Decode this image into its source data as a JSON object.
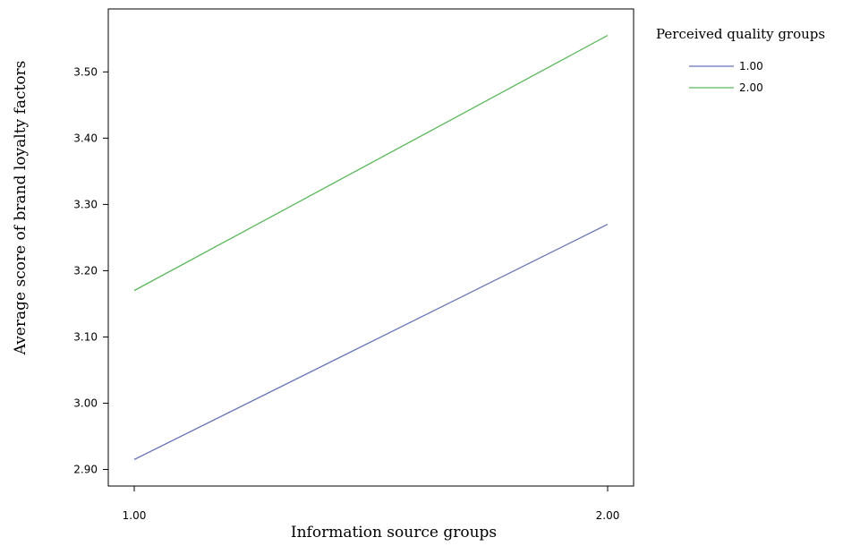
{
  "chart_data": {
    "type": "line",
    "xlabel": "Information source groups",
    "ylabel": "Average score of brand loyalty factors",
    "x": [
      1.0,
      2.0
    ],
    "x_tick_labels": [
      "1.00",
      "2.00"
    ],
    "ylim": [
      2.875,
      3.595
    ],
    "y_ticks": [
      2.9,
      3.0,
      3.1,
      3.2,
      3.3,
      3.4,
      3.5
    ],
    "y_tick_labels": [
      "2.90",
      "3.00",
      "3.10",
      "3.20",
      "3.30",
      "3.40",
      "3.50"
    ],
    "grid": false,
    "legend": {
      "title": "Perceived quality  groups",
      "placement": "right"
    },
    "series": [
      {
        "name": "1.00",
        "color": "#6674b8",
        "values": [
          2.915,
          3.27
        ]
      },
      {
        "name": "2.00",
        "color": "#5cb85c",
        "values": [
          3.17,
          3.555
        ]
      }
    ]
  }
}
